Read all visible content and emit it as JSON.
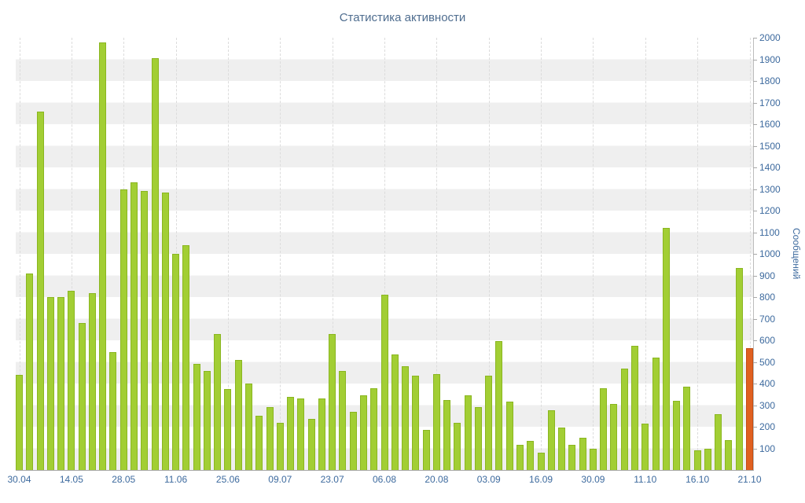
{
  "title": "Статистика активности",
  "colors": {
    "bar_fill": "#a2ce34",
    "bar_border": "#8ab620",
    "highlight_fill": "#e06020",
    "highlight_border": "#c24e14",
    "title_text": "#4f6d8f",
    "axis_text": "#3d6a9e",
    "stripe_gray": "#efefef",
    "stripe_white": "#ffffff"
  },
  "chart_data": {
    "type": "bar",
    "title": "Статистика активности",
    "xlabel": "",
    "ylabel": "Сообщений",
    "ylim": [
      0,
      2000
    ],
    "ytick_step": 100,
    "grid": "horizontal-stripes",
    "legend": "none",
    "x_tick_labels": [
      "30.04",
      "14.05",
      "28.05",
      "11.06",
      "25.06",
      "09.07",
      "23.07",
      "06.08",
      "20.08",
      "03.09",
      "16.09",
      "30.09",
      "11.10",
      "16.10",
      "21.10"
    ],
    "x_tick_every": 5,
    "values": [
      440,
      910,
      1660,
      800,
      800,
      830,
      680,
      820,
      1980,
      545,
      1300,
      1330,
      1290,
      1905,
      1285,
      1000,
      1040,
      490,
      460,
      630,
      375,
      510,
      400,
      250,
      290,
      220,
      340,
      330,
      235,
      330,
      630,
      460,
      270,
      345,
      380,
      810,
      535,
      480,
      435,
      185,
      445,
      325,
      220,
      345,
      290,
      435,
      595,
      315,
      115,
      135,
      80,
      275,
      195,
      115,
      150,
      100,
      380,
      305,
      470,
      575,
      215,
      520,
      1120,
      320,
      385,
      90,
      100,
      260,
      140,
      935,
      565
    ],
    "highlight_last": true
  }
}
